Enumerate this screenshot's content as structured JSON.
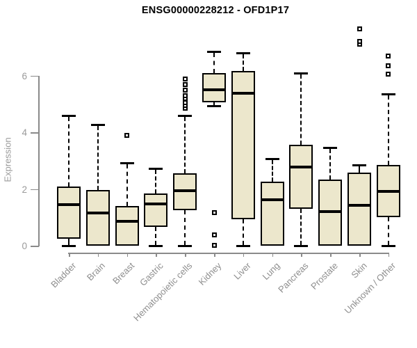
{
  "chart": {
    "title": "ENSG00000228212 - OFD1P17",
    "y_axis_label": "Expression"
  },
  "chart_data": {
    "type": "boxplot",
    "title": "ENSG00000228212 - OFD1P17",
    "xlabel": "",
    "ylabel": "Expression",
    "y_ticks": [
      0,
      2,
      4,
      6
    ],
    "ylim": [
      0,
      7.8
    ],
    "grid": false,
    "legend": "none",
    "categories": [
      "Bladder",
      "Brain",
      "Breast",
      "Gastric",
      "Hematopoietic cells",
      "Kidney",
      "Liver",
      "Lung",
      "Pancreas",
      "Prostate",
      "Skin",
      "Unknown / Other"
    ],
    "series": [
      {
        "category": "Bladder",
        "whisker_low": 0,
        "q1": 0.25,
        "median": 1.45,
        "q3": 2.1,
        "whisker_high": 4.6,
        "outliers": []
      },
      {
        "category": "Brain",
        "whisker_low": 0,
        "q1": 0,
        "median": 1.15,
        "q3": 1.97,
        "whisker_high": 4.28,
        "outliers": []
      },
      {
        "category": "Breast",
        "whisker_low": 0,
        "q1": 0,
        "median": 0.85,
        "q3": 1.4,
        "whisker_high": 2.92,
        "outliers": [
          3.9
        ]
      },
      {
        "category": "Gastric",
        "whisker_low": 0,
        "q1": 0.66,
        "median": 1.48,
        "q3": 1.84,
        "whisker_high": 2.74,
        "outliers": []
      },
      {
        "category": "Hematopoietic cells",
        "whisker_low": 0,
        "q1": 1.25,
        "median": 1.95,
        "q3": 2.56,
        "whisker_high": 4.6,
        "outliers": [
          4.85,
          4.95,
          5.05,
          5.2,
          5.3,
          5.5,
          5.7,
          5.9
        ]
      },
      {
        "category": "Kidney",
        "whisker_low": 4.95,
        "q1": 5.06,
        "median": 5.5,
        "q3": 6.1,
        "whisker_high": 6.85,
        "outliers": [
          1.18,
          0.39,
          0.02
        ]
      },
      {
        "category": "Liver",
        "whisker_low": 0,
        "q1": 0.94,
        "median": 5.39,
        "q3": 6.16,
        "whisker_high": 6.8,
        "outliers": []
      },
      {
        "category": "Lung",
        "whisker_low": 0,
        "q1": 0,
        "median": 1.63,
        "q3": 2.26,
        "whisker_high": 3.08,
        "outliers": []
      },
      {
        "category": "Pancreas",
        "whisker_low": 0,
        "q1": 1.3,
        "median": 2.78,
        "q3": 3.56,
        "whisker_high": 6.1,
        "outliers": []
      },
      {
        "category": "Prostate",
        "whisker_low": 0,
        "q1": 0,
        "median": 1.2,
        "q3": 2.34,
        "whisker_high": 3.46,
        "outliers": []
      },
      {
        "category": "Skin",
        "whisker_low": 0,
        "q1": 0,
        "median": 1.43,
        "q3": 2.58,
        "whisker_high": 2.85,
        "outliers": [
          7.13,
          7.22,
          7.65
        ]
      },
      {
        "category": "Unknown / Other",
        "whisker_low": 0,
        "q1": 1.0,
        "median": 1.92,
        "q3": 2.85,
        "whisker_high": 5.35,
        "outliers": [
          6.07,
          6.35,
          6.7
        ]
      }
    ],
    "colors": {
      "box_fill": "#ece7cc",
      "box_border": "#000000",
      "median": "#000000",
      "axis": "#8a8a8a",
      "tick_text": "#9a9a9a",
      "title_text": "#000000",
      "background": "#ffffff"
    }
  }
}
